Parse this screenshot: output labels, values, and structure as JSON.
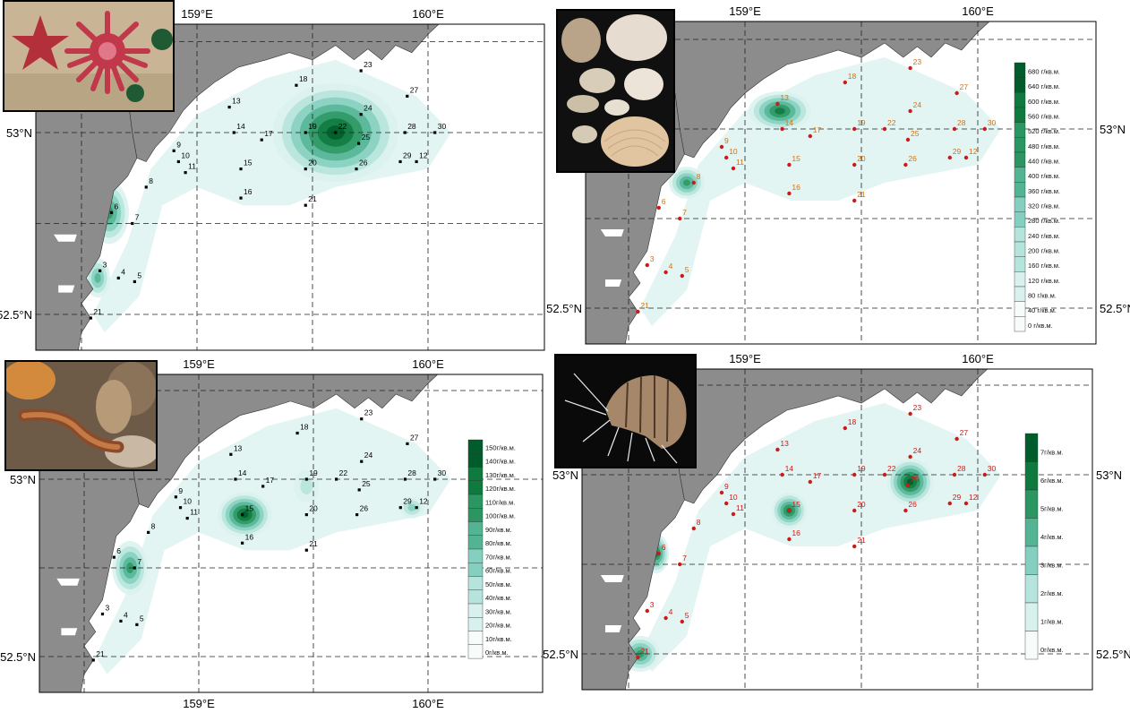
{
  "axes": {
    "lon_labels": [
      "159°E",
      "160°E"
    ],
    "lat_labels": [
      "53°N",
      "52.5°N"
    ],
    "lat_labels_right_tr": [
      "53°N",
      "52.5°N"
    ],
    "lat_labels_right_br": [
      "53°N",
      "52.5°N"
    ]
  },
  "stations": [
    {
      "id": "3",
      "lon": 158.58,
      "lat": 52.62
    },
    {
      "id": "4",
      "lon": 158.66,
      "lat": 52.6
    },
    {
      "id": "5",
      "lon": 158.73,
      "lat": 52.59
    },
    {
      "id": "6",
      "lon": 158.63,
      "lat": 52.78
    },
    {
      "id": "7",
      "lon": 158.72,
      "lat": 52.75
    },
    {
      "id": "8",
      "lon": 158.78,
      "lat": 52.85
    },
    {
      "id": "9",
      "lon": 158.9,
      "lat": 52.95
    },
    {
      "id": "10",
      "lon": 158.92,
      "lat": 52.92
    },
    {
      "id": "11",
      "lon": 158.95,
      "lat": 52.89
    },
    {
      "id": "12",
      "lon": 159.95,
      "lat": 52.92
    },
    {
      "id": "13",
      "lon": 159.14,
      "lat": 53.07
    },
    {
      "id": "14",
      "lon": 159.16,
      "lat": 53.0
    },
    {
      "id": "15",
      "lon": 159.19,
      "lat": 52.9
    },
    {
      "id": "16",
      "lon": 159.19,
      "lat": 52.82
    },
    {
      "id": "17",
      "lon": 159.28,
      "lat": 52.98
    },
    {
      "id": "18",
      "lon": 159.43,
      "lat": 53.13
    },
    {
      "id": "19",
      "lon": 159.47,
      "lat": 53.0
    },
    {
      "id": "20",
      "lon": 159.47,
      "lat": 52.9
    },
    {
      "id": "21",
      "lon": 159.47,
      "lat": 52.8
    },
    {
      "id": "22",
      "lon": 159.6,
      "lat": 53.0
    },
    {
      "id": "23",
      "lon": 159.71,
      "lat": 53.17
    },
    {
      "id": "24",
      "lon": 159.71,
      "lat": 53.05
    },
    {
      "id": "25",
      "lon": 159.7,
      "lat": 52.97
    },
    {
      "id": "26",
      "lon": 159.69,
      "lat": 52.9
    },
    {
      "id": "27",
      "lon": 159.91,
      "lat": 53.1
    },
    {
      "id": "28",
      "lon": 159.9,
      "lat": 53.0
    },
    {
      "id": "29",
      "lon": 159.88,
      "lat": 52.92
    },
    {
      "id": "30",
      "lon": 160.03,
      "lat": 53.0
    },
    {
      "id": "21b",
      "label": "21",
      "lon": 158.54,
      "lat": 52.49
    }
  ],
  "panels": [
    {
      "id": "top-left",
      "hotspots": [
        {
          "lon": 159.6,
          "lat": 53.0,
          "r": [
            70,
            55
          ],
          "level": 0.95
        },
        {
          "lon": 158.62,
          "lat": 52.78,
          "r": [
            22,
            35
          ],
          "level": 0.7
        },
        {
          "lon": 158.57,
          "lat": 52.6,
          "r": [
            14,
            22
          ],
          "level": 0.55
        }
      ]
    },
    {
      "id": "top-right",
      "legend": {
        "labels": [
          "680 г/кв.м.",
          "640 г/кв.м.",
          "600 г/кв.м.",
          "560 г/кв.м.",
          "520 г/кв.м.",
          "480 г/кв.м.",
          "440 г/кв.м.",
          "400 г/кв.м.",
          "360 г/кв.м.",
          "320 г/кв.м.",
          "280 г/кв.м.",
          "240 г/кв.м.",
          "200 г/кв.м.",
          "160 г/кв.м.",
          "120 г/кв.м.",
          "80 г/кв.м.",
          "40 г/кв.м.",
          "0 г/кв.м."
        ]
      },
      "hotspots": [
        {
          "lon": 159.15,
          "lat": 53.05,
          "r": [
            35,
            22
          ],
          "level": 0.9
        },
        {
          "lon": 158.75,
          "lat": 52.85,
          "r": [
            20,
            18
          ],
          "level": 0.7
        }
      ]
    },
    {
      "id": "bottom-left",
      "legend": {
        "labels": [
          "150г/кв.м.",
          "140г/кв.м.",
          "130г/кв.м.",
          "120г/кв.м.",
          "110г/кв.м.",
          "100г/кв.м.",
          "90г/кв.м.",
          "80г/кв.м.",
          "70г/кв.м.",
          "60г/кв.м.",
          "50г/кв.м.",
          "40г/кв.м.",
          "30г/кв.м.",
          "20г/кв.м.",
          "10г/кв.м.",
          "0г/кв.м."
        ]
      },
      "hotspots": [
        {
          "lon": 159.2,
          "lat": 52.9,
          "r": [
            30,
            25
          ],
          "level": 0.95
        },
        {
          "lon": 158.7,
          "lat": 52.75,
          "r": [
            20,
            30
          ],
          "level": 0.75
        },
        {
          "lon": 159.47,
          "lat": 52.98,
          "r": [
            14,
            18
          ],
          "level": 0.35
        },
        {
          "lon": 159.93,
          "lat": 52.92,
          "r": [
            14,
            12
          ],
          "level": 0.45
        }
      ]
    },
    {
      "id": "bottom-right",
      "legend": {
        "labels": [
          "7г/кв.м.",
          "6г/кв.м.",
          "5г/кв.м.",
          "4г/кв.м.",
          "3г/кв.м.",
          "2г/кв.м.",
          "1г/кв.м.",
          "0г/кв.м."
        ]
      },
      "hotspots": [
        {
          "lon": 159.71,
          "lat": 52.98,
          "r": [
            26,
            26
          ],
          "level": 0.95
        },
        {
          "lon": 159.19,
          "lat": 52.9,
          "r": [
            20,
            20
          ],
          "level": 0.85
        },
        {
          "lon": 158.62,
          "lat": 52.78,
          "r": [
            14,
            22
          ],
          "level": 0.9
        },
        {
          "lon": 158.55,
          "lat": 52.5,
          "r": [
            22,
            20
          ],
          "level": 0.7
        }
      ]
    }
  ],
  "colors": {
    "land": "#8c8c8c",
    "water": "#ffffff",
    "ramp": [
      "#f7fcfb",
      "#d9f1ee",
      "#b4e4db",
      "#84cfbf",
      "#53b494",
      "#2b9661",
      "#0f7a3e",
      "#005c2a"
    ],
    "station_black": "#000000",
    "station_red": "#cc1a1a",
    "label_orange": "#c8741e"
  },
  "photos": [
    {
      "id": "starfish",
      "icon": "starfish-photo"
    },
    {
      "id": "bivalves",
      "icon": "shells-photo"
    },
    {
      "id": "polychaete",
      "icon": "worm-photo"
    },
    {
      "id": "amphipod",
      "icon": "amphipod-photo"
    }
  ]
}
